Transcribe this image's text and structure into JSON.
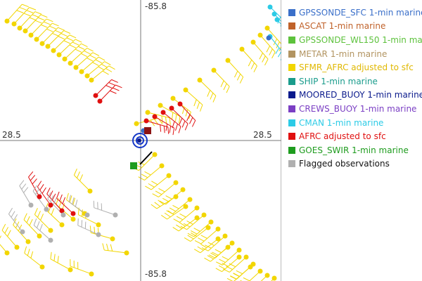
{
  "chart_data": {
    "type": "scatter",
    "title": "",
    "axes": {
      "x_left_label": "28.5",
      "x_right_label": "28.5",
      "y_top_label": "-85.8",
      "y_bottom_label": "-85.8"
    },
    "grid": false,
    "legend_placement": "right",
    "legend": [
      {
        "name": "GPSSONDE_SFC 1-min marine",
        "color": "#3a6fc9",
        "text_color": "#3a6fc9"
      },
      {
        "name": "ASCAT 1-min marine",
        "color": "#c0622a",
        "text_color": "#c0622a"
      },
      {
        "name": "GPSSONDE_WL150 1-min marine",
        "color": "#5dc23c",
        "text_color": "#5dc23c"
      },
      {
        "name": "METAR 1-min marine",
        "color": "#b29461",
        "text_color": "#b29461"
      },
      {
        "name": "SFMR_AFRC adjusted to sfc",
        "color": "#f2d600",
        "text_color": "#e0b800"
      },
      {
        "name": "SHIP 1-min marine",
        "color": "#1a9c8c",
        "text_color": "#1a9c8c"
      },
      {
        "name": "MOORED_BUOY 1-min marine",
        "color": "#0a1a8c",
        "text_color": "#0a1a8c"
      },
      {
        "name": "CREWS_BUOY 1-min marine",
        "color": "#7b3fc4",
        "text_color": "#7b3fc4"
      },
      {
        "name": "CMAN 1-min marine",
        "color": "#2ccbe6",
        "text_color": "#2ccbe6"
      },
      {
        "name": "AFRC adjusted to sfc",
        "color": "#e01010",
        "text_color": "#e01010"
      },
      {
        "name": "GOES_SWIR 1-min marine",
        "color": "#1e9c1e",
        "text_color": "#1e9c1e"
      },
      {
        "name": "Flagged observations",
        "color": "#b0b0b0",
        "text_color": "#111111"
      }
    ],
    "series": [
      {
        "legend_index": 4,
        "values": [
          [
            -0.95,
            0.85
          ],
          [
            -0.9,
            0.83
          ],
          [
            -0.86,
            0.8
          ],
          [
            -0.82,
            0.78
          ],
          [
            -0.78,
            0.75
          ],
          [
            -0.74,
            0.72
          ],
          [
            -0.7,
            0.69
          ],
          [
            -0.66,
            0.67
          ],
          [
            -0.62,
            0.64
          ],
          [
            -0.58,
            0.61
          ],
          [
            -0.54,
            0.58
          ],
          [
            -0.5,
            0.55
          ],
          [
            -0.46,
            0.52
          ],
          [
            -0.42,
            0.49
          ],
          [
            -0.38,
            0.46
          ],
          [
            -0.35,
            0.43
          ],
          [
            -0.03,
            0.12
          ],
          [
            0.05,
            0.2
          ],
          [
            0.14,
            0.25
          ],
          [
            0.23,
            0.3
          ],
          [
            0.32,
            0.36
          ],
          [
            0.42,
            0.43
          ],
          [
            0.52,
            0.5
          ],
          [
            0.62,
            0.57
          ],
          [
            0.72,
            0.65
          ],
          [
            0.8,
            0.7
          ],
          [
            0.85,
            0.75
          ],
          [
            0.9,
            0.8
          ],
          [
            0.1,
            -0.1
          ],
          [
            0.15,
            -0.18
          ],
          [
            0.2,
            -0.25
          ],
          [
            0.25,
            -0.3
          ],
          [
            0.3,
            -0.35
          ],
          [
            0.35,
            -0.42
          ],
          [
            0.4,
            -0.48
          ],
          [
            0.45,
            -0.53
          ],
          [
            0.5,
            -0.58
          ],
          [
            0.55,
            -0.63
          ],
          [
            0.6,
            -0.68
          ],
          [
            0.65,
            -0.73
          ],
          [
            0.7,
            -0.78
          ],
          [
            0.75,
            -0.83
          ],
          [
            0.8,
            -0.88
          ],
          [
            0.85,
            -0.93
          ],
          [
            0.9,
            -0.96
          ],
          [
            0.95,
            -0.98
          ],
          [
            0.25,
            -0.4
          ],
          [
            0.32,
            -0.47
          ],
          [
            0.4,
            -0.55
          ],
          [
            0.48,
            -0.62
          ],
          [
            0.55,
            -0.7
          ],
          [
            0.62,
            -0.76
          ],
          [
            0.7,
            -0.83
          ],
          [
            0.78,
            -0.9
          ],
          [
            -0.95,
            -0.8
          ],
          [
            -0.88,
            -0.76
          ],
          [
            -0.8,
            -0.72
          ],
          [
            -0.72,
            -0.68
          ],
          [
            -0.64,
            -0.64
          ],
          [
            -0.56,
            -0.6
          ],
          [
            -0.48,
            -0.56
          ],
          [
            -0.4,
            -0.52
          ],
          [
            -0.3,
            -0.6
          ],
          [
            -0.2,
            -0.7
          ],
          [
            -0.1,
            -0.8
          ],
          [
            -0.7,
            -0.9
          ],
          [
            -0.5,
            -0.92
          ],
          [
            -0.35,
            -0.95
          ],
          [
            -0.36,
            -0.36
          ]
        ]
      },
      {
        "legend_index": 9,
        "values": [
          [
            -0.32,
            0.32
          ],
          [
            -0.29,
            0.28
          ],
          [
            0.04,
            0.14
          ],
          [
            0.1,
            0.17
          ],
          [
            0.16,
            0.2
          ],
          [
            0.22,
            0.23
          ],
          [
            0.28,
            0.26
          ],
          [
            -0.72,
            -0.4
          ],
          [
            -0.64,
            -0.46
          ],
          [
            -0.56,
            -0.5
          ],
          [
            -0.48,
            -0.52
          ]
        ]
      },
      {
        "legend_index": 11,
        "values": [
          [
            -0.78,
            -0.46
          ],
          [
            -0.67,
            -0.49
          ],
          [
            -0.55,
            -0.53
          ],
          [
            -0.38,
            -0.53
          ],
          [
            -0.18,
            -0.53
          ],
          [
            -0.3,
            -0.67
          ],
          [
            -0.64,
            -0.71
          ],
          [
            -0.84,
            -0.65
          ]
        ]
      },
      {
        "legend_index": 8,
        "values": [
          [
            0.92,
            0.95
          ],
          [
            0.95,
            0.9
          ],
          [
            0.97,
            0.86
          ],
          [
            0.92,
            0.74
          ]
        ]
      },
      {
        "legend_index": 0,
        "values": [
          [
            0.02,
            0.07
          ],
          [
            0.91,
            0.73
          ]
        ]
      },
      {
        "legend_index": 1,
        "values": [
          [
            0.05,
            0.07
          ]
        ]
      },
      {
        "legend_index": 6,
        "values": [
          [
            -0.01,
            0.0
          ]
        ]
      },
      {
        "legend_index": 10,
        "values": [
          [
            -0.05,
            -0.18
          ]
        ]
      }
    ],
    "xlim": [
      -1,
      1
    ],
    "ylim": [
      -1,
      1
    ]
  }
}
